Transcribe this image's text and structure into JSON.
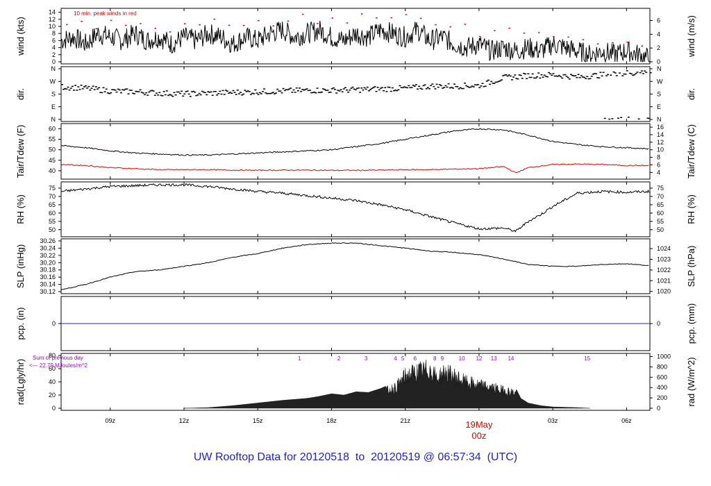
{
  "page_title": "UW Rooftop Data for 20120518  to  20120519 @ 06:57:34  (UTC)",
  "colors": {
    "title": "#1f1fcf",
    "series_black": "#000000",
    "dewpoint": "#e00000",
    "peak_wind": "#e00000",
    "precip_line": "#2222cc",
    "date_label": "#e00000",
    "rad_annotation": "#9b00c8"
  },
  "time_axis": {
    "tick_labels": [
      "09z",
      "12z",
      "15z",
      "18z",
      "21z",
      "00z",
      "03z",
      "06z"
    ],
    "tick_hours": [
      9,
      12,
      15,
      18,
      21,
      24,
      27,
      30
    ],
    "range_hours": [
      7.0,
      30.95
    ],
    "date_label": "19May",
    "date_tick_label": "00z"
  },
  "chart_data": [
    {
      "type": "line",
      "panel": "wind",
      "ylabel": "wind (kts)",
      "ylabel_right": "wind (m/s)",
      "ylim": [
        0,
        14.5
      ],
      "yticks": [
        0,
        2,
        4,
        6,
        8,
        10,
        12,
        14
      ],
      "right_ticks": [
        0,
        2,
        4,
        6
      ],
      "annotation": "10 min. peak winds in red",
      "series": [
        {
          "x": [
            7.0,
            7.5,
            8.0,
            8.5,
            9.0,
            9.5,
            10.0,
            10.5,
            11.0,
            11.5,
            12.0,
            12.5,
            13.0,
            13.5,
            14.0,
            14.5,
            15.0,
            15.5,
            16.0,
            16.5,
            17.0,
            17.5,
            18.0,
            18.5,
            19.0,
            19.5,
            20.0,
            20.5,
            21.0,
            21.5,
            22.0,
            22.5,
            23.0,
            23.5,
            24.0,
            24.5,
            25.0,
            25.5,
            26.0,
            26.5,
            27.0,
            27.5,
            28.0,
            28.5,
            29.0,
            29.5,
            30.0,
            30.5,
            30.9
          ],
          "values": [
            6,
            7,
            5,
            8,
            7,
            6,
            8,
            6,
            7,
            5,
            7,
            6,
            8,
            7,
            5,
            7,
            6,
            8,
            9,
            7,
            8,
            9,
            7,
            6,
            8,
            7,
            9,
            8,
            7,
            9,
            6,
            7,
            5,
            4,
            5,
            3,
            4,
            3,
            4,
            3,
            5,
            4,
            3,
            2,
            3,
            2,
            3,
            2,
            1
          ]
        },
        {
          "name": "10 min. peak winds in red",
          "x": [
            7.2,
            7.8,
            8.4,
            9.0,
            9.6,
            10.2,
            10.8,
            11.4,
            12.0,
            12.6,
            13.2,
            13.8,
            14.4,
            15.0,
            15.6,
            16.2,
            16.8,
            17.4,
            18.0,
            18.6,
            19.2,
            19.8,
            20.4,
            21.0,
            21.6,
            22.2,
            22.8,
            23.4,
            24.0,
            24.6,
            25.2,
            25.8,
            26.4,
            27.0,
            27.6,
            28.2,
            28.8,
            29.4,
            30.0,
            30.6
          ],
          "values": [
            10,
            11,
            9,
            12,
            10,
            11,
            10,
            9,
            11,
            10,
            12,
            11,
            10,
            12,
            11,
            12,
            13,
            11,
            12,
            11,
            13,
            12,
            12,
            13,
            12,
            11,
            10,
            10,
            8,
            9,
            9,
            8,
            9,
            8,
            7,
            6,
            5,
            6,
            5,
            5
          ]
        }
      ]
    },
    {
      "type": "scatter",
      "panel": "dir",
      "ylabel": "dir.",
      "ylabel_right": "dir.",
      "yticks": [
        "N",
        "E",
        "S",
        "W",
        "N"
      ],
      "ylim": [
        0,
        360
      ],
      "series": [
        {
          "x": [
            7,
            8,
            9,
            10,
            11,
            12,
            13,
            14,
            15,
            16,
            17,
            18,
            19,
            20,
            21,
            22,
            23,
            24,
            25,
            26,
            27,
            28,
            29,
            30,
            30.9
          ],
          "values": [
            235,
            225,
            205,
            200,
            190,
            185,
            190,
            195,
            200,
            205,
            210,
            210,
            215,
            220,
            225,
            240,
            240,
            245,
            300,
            315,
            320,
            305,
            320,
            330,
            345
          ]
        }
      ]
    },
    {
      "type": "line",
      "panel": "tair_tdew",
      "ylabel": "Tair/Tdew (F)",
      "ylabel_right": "Tair/Tdew (C)",
      "ylim": [
        37,
        61.5
      ],
      "yticks": [
        40,
        45,
        50,
        55,
        60
      ],
      "right_ticks": [
        4,
        6,
        8,
        10,
        12,
        14,
        16
      ],
      "series": [
        {
          "name": "Tair",
          "x": [
            7,
            8,
            9,
            10,
            11,
            12,
            13,
            14,
            15,
            16,
            17,
            18,
            19,
            20,
            21,
            22,
            23,
            24,
            25,
            26,
            27,
            28,
            29,
            30,
            30.9
          ],
          "values": [
            52,
            51,
            49.5,
            48.5,
            48,
            47.5,
            47.5,
            48,
            48.5,
            49,
            49.5,
            50,
            51.5,
            53,
            55,
            57,
            59,
            60,
            59.5,
            57,
            54,
            52.5,
            51.5,
            51,
            50.5
          ]
        },
        {
          "name": "Tdew",
          "x": [
            7,
            8,
            9,
            10,
            11,
            12,
            13,
            14,
            15,
            16,
            17,
            18,
            19,
            20,
            21,
            22,
            23,
            24,
            25,
            25.5,
            26,
            27,
            28,
            29,
            30,
            30.9
          ],
          "values": [
            43,
            42.5,
            41.5,
            41,
            40.5,
            40.5,
            40.5,
            40.3,
            40.2,
            40.3,
            40.3,
            40.2,
            40.2,
            40.3,
            40.5,
            40.5,
            40.8,
            41,
            42,
            39,
            41.5,
            43,
            43.2,
            43,
            42.5,
            42.5
          ]
        }
      ]
    },
    {
      "type": "line",
      "panel": "rh",
      "ylabel": "RH (%)",
      "ylabel_right": "RH (%)",
      "ylim": [
        47,
        77.5
      ],
      "yticks": [
        50,
        55,
        60,
        65,
        70,
        75
      ],
      "right_ticks": [
        50,
        55,
        60,
        65,
        70,
        75
      ],
      "series": [
        {
          "x": [
            7,
            8,
            9,
            10,
            11,
            12,
            13,
            14,
            15,
            16,
            17,
            18,
            19,
            20,
            21,
            22,
            23,
            24,
            25,
            25.5,
            26,
            26.5,
            27,
            28,
            29,
            30,
            30.9
          ],
          "values": [
            73,
            74.5,
            76,
            76.5,
            77,
            77,
            76,
            74.5,
            73,
            72,
            70.5,
            69,
            67.5,
            65,
            62,
            58,
            54,
            50.5,
            51,
            49,
            55,
            59,
            64,
            72,
            73,
            72.5,
            73
          ]
        }
      ]
    },
    {
      "type": "line",
      "panel": "slp",
      "ylabel": "SLP (inHg)",
      "ylabel_right": "SLP (hPa)",
      "ylim": [
        30.12,
        30.26
      ],
      "yticks": [
        30.12,
        30.14,
        30.16,
        30.18,
        30.2,
        30.22,
        30.24,
        30.26
      ],
      "right_ticks": [
        1020,
        1021,
        1022,
        1023,
        1024
      ],
      "series": [
        {
          "x": [
            7,
            8,
            9,
            10,
            11,
            12,
            13,
            14,
            15,
            16,
            17,
            18,
            19,
            20,
            21,
            22,
            23,
            24,
            25,
            26,
            27,
            28,
            29,
            30,
            30.9
          ],
          "values": [
            30.125,
            30.14,
            30.16,
            30.175,
            30.18,
            30.19,
            30.2,
            30.215,
            30.225,
            30.24,
            30.25,
            30.254,
            30.254,
            30.247,
            30.24,
            30.232,
            30.228,
            30.222,
            30.21,
            30.195,
            30.19,
            30.19,
            30.195,
            30.197,
            30.192
          ]
        }
      ]
    },
    {
      "type": "line",
      "panel": "pcp",
      "ylabel": "pcp. (in)",
      "ylabel_right": "pcp. (mm)",
      "yticks": [
        0
      ],
      "right_ticks": [
        0
      ],
      "series": [
        {
          "x": [
            7,
            30.95
          ],
          "values": [
            0,
            0
          ]
        }
      ]
    },
    {
      "type": "area",
      "panel": "rad",
      "ylabel": "rad(Lgly/hr)",
      "ylabel_right": "rad (W/m^2)",
      "ylim": [
        0,
        80
      ],
      "yticks": [
        0,
        20,
        40,
        60,
        80
      ],
      "right_ticks": [
        0,
        200,
        400,
        600,
        800,
        1000
      ],
      "annotation_lines": [
        "Sum of previous day",
        "<--- 22.79 MJoules/m^2"
      ],
      "hour_labels": [
        "1",
        "2",
        "3",
        "4",
        "5",
        "6",
        "8",
        "9",
        "10",
        "12",
        "13",
        "14",
        "15"
      ],
      "hour_label_x": [
        16.7,
        18.3,
        19.4,
        20.6,
        20.9,
        21.4,
        22.2,
        22.5,
        23.3,
        24.0,
        24.6,
        25.3,
        28.4
      ],
      "series": [
        {
          "x": [
            12,
            13,
            14,
            15,
            16,
            17,
            17.5,
            18,
            18.5,
            19,
            19.5,
            20,
            20.3,
            20.6,
            21,
            21.3,
            21.6,
            22,
            22.3,
            22.6,
            23,
            23.5,
            24,
            24.5,
            25,
            25.5,
            25.7,
            26,
            26.5,
            27,
            28,
            28.5
          ],
          "values": [
            0,
            1,
            4,
            8,
            12,
            15,
            18,
            22,
            20,
            25,
            24,
            30,
            35,
            40,
            62,
            68,
            72,
            76,
            58,
            70,
            62,
            50,
            45,
            40,
            35,
            30,
            15,
            8,
            4,
            2,
            1,
            0
          ]
        }
      ]
    }
  ]
}
